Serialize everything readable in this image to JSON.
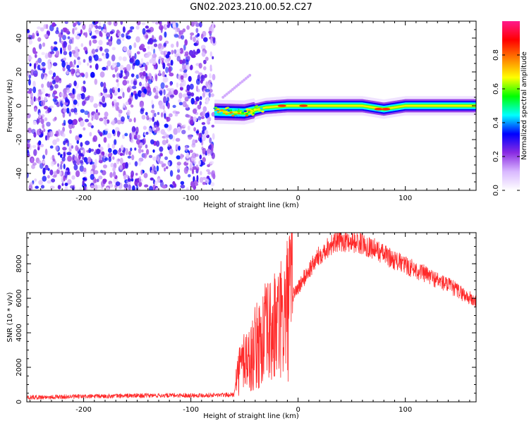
{
  "title": "GN02.2023.210.00.52.C27",
  "chart_data": [
    {
      "type": "heatmap",
      "xlabel": "Height of straight line (km)",
      "ylabel": "Frequency (Hz)",
      "xlim": [
        -253,
        166
      ],
      "ylim": [
        -50,
        50
      ],
      "xticks": [
        -200,
        -100,
        0,
        100
      ],
      "yticks": [
        -40,
        -20,
        0,
        20,
        40
      ],
      "colorbar": {
        "label": "Normalized spectral amplitude",
        "range": [
          0,
          1
        ],
        "ticks": [
          0.0,
          0.2,
          0.4,
          0.6,
          0.8
        ],
        "colormap": [
          "#ffffff",
          "#d9b8ff",
          "#8a2be2",
          "#0000ff",
          "#00ffff",
          "#00ff00",
          "#ffff00",
          "#ff8000",
          "#ff0000",
          "#ff1a8c"
        ]
      },
      "regions": {
        "noise_extent_km": [
          -253,
          -78
        ],
        "noise_level": 0.3,
        "signal_extent_km": [
          -78,
          166
        ],
        "signal_center_hz": [
          {
            "x": -78,
            "f": -3.5
          },
          {
            "x": -50,
            "f": -4
          },
          {
            "x": -30,
            "f": -1
          },
          {
            "x": -10,
            "f": 0
          },
          {
            "x": 60,
            "f": 0
          },
          {
            "x": 80,
            "f": -2
          },
          {
            "x": 100,
            "f": 0
          },
          {
            "x": 166,
            "f": 0
          }
        ],
        "signal_halfwidth_hz": 3,
        "peak_points": [
          {
            "x": -15,
            "f": 0
          },
          {
            "x": 5,
            "f": 0
          },
          {
            "x": 75,
            "f": -2
          },
          {
            "x": 82,
            "f": -2
          }
        ],
        "branch": [
          {
            "x": -70,
            "f": 5
          },
          {
            "x": -45,
            "f": 18
          }
        ]
      }
    },
    {
      "type": "line",
      "xlabel": "Height of straight line (km)",
      "ylabel": "SNR (10 * v/v)",
      "xlim": [
        -253,
        166
      ],
      "ylim": [
        0,
        9800
      ],
      "xticks": [
        -200,
        -100,
        0,
        100
      ],
      "yticks": [
        0,
        2000,
        4000,
        6000,
        8000
      ],
      "color": "#ff2a2a",
      "series": [
        {
          "x": [
            -253,
            -200,
            -150,
            -100,
            -80,
            -60,
            -57,
            -50,
            -45,
            -40,
            -35,
            -30,
            -25,
            -20,
            -15,
            -10,
            -5,
            0,
            10,
            20,
            30,
            40,
            50,
            60,
            70,
            80,
            90,
            100,
            110,
            120,
            130,
            140,
            150,
            160,
            166
          ],
          "y": [
            200,
            250,
            300,
            320,
            330,
            350,
            1500,
            2600,
            2400,
            3100,
            3500,
            3900,
            4000,
            4400,
            4600,
            5400,
            6200,
            6600,
            7600,
            8500,
            9100,
            9350,
            9300,
            9150,
            8900,
            8550,
            8200,
            7900,
            7650,
            7350,
            7050,
            6750,
            6400,
            6000,
            5800
          ]
        }
      ]
    }
  ]
}
